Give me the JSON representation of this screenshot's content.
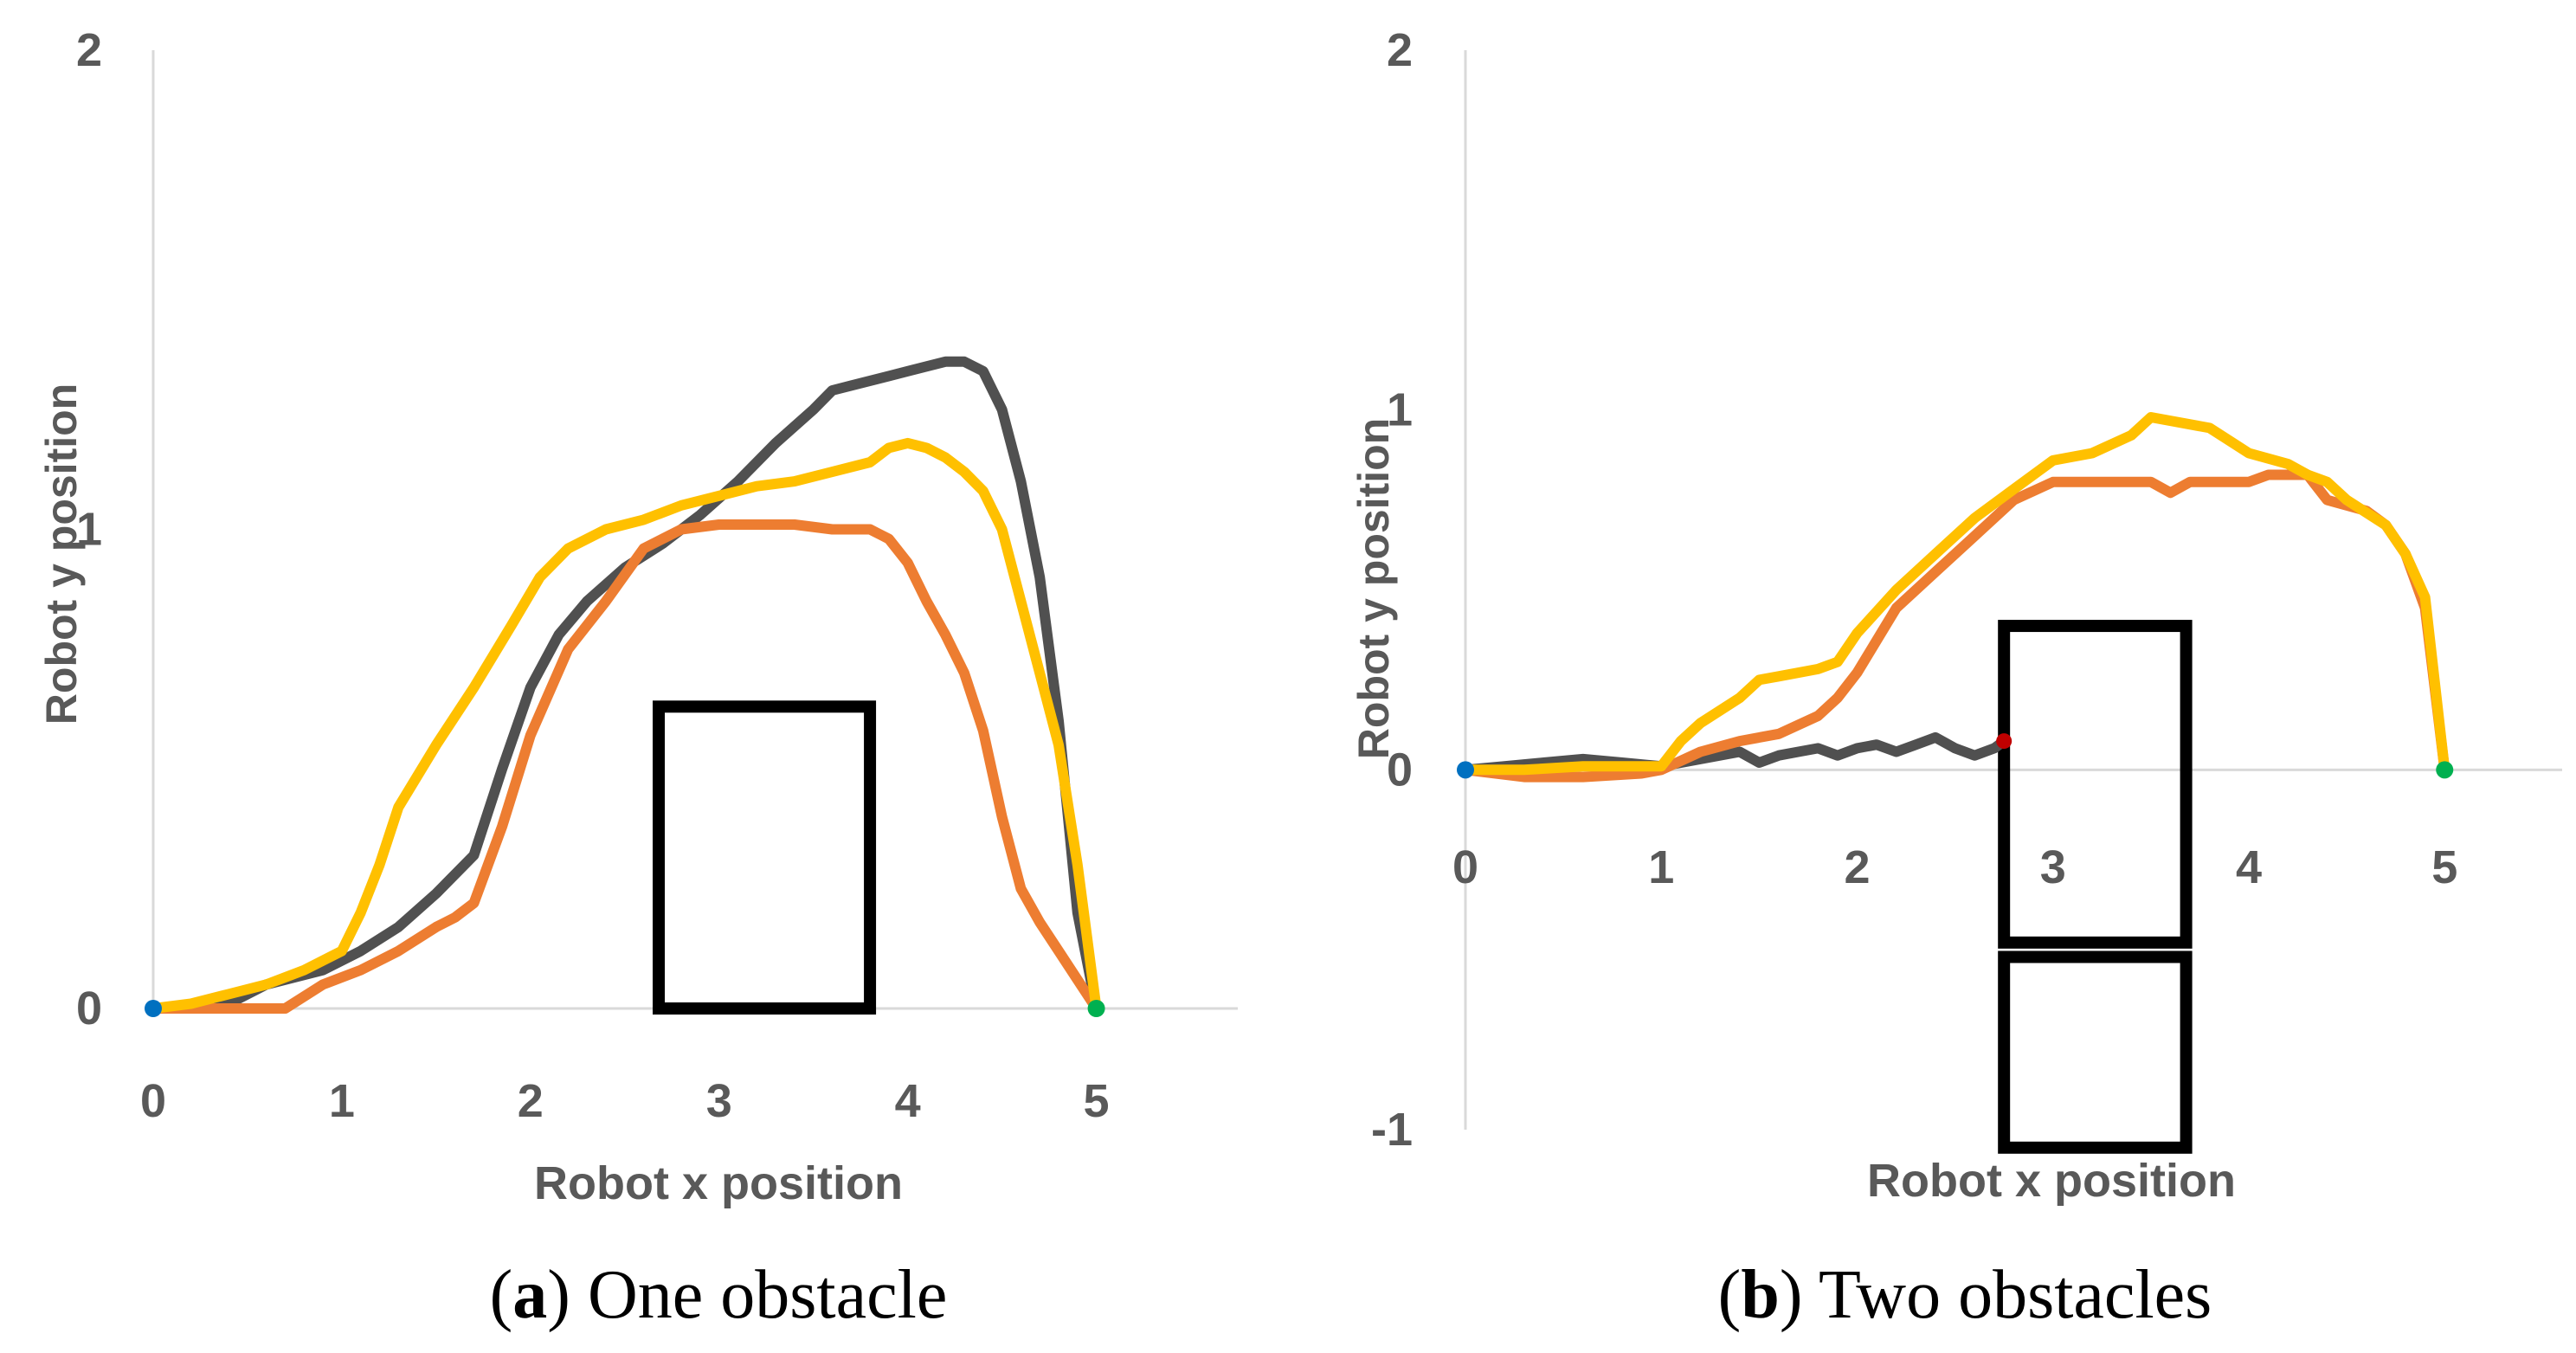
{
  "colors": {
    "gray": "#505050",
    "orange": "#ED7D31",
    "yellow": "#FFC000",
    "start": "#0070C0",
    "goal": "#00B050",
    "collision": "#C00000",
    "axis": "#D9D9D9",
    "obstacle": "#000000"
  },
  "chart_data": [
    {
      "type": "line",
      "caption_letter": "a",
      "caption_text": " One obstacle",
      "xlabel": "Robot x position",
      "ylabel": "Robot y position",
      "xlim": [
        0,
        5.75
      ],
      "ylim": [
        0,
        2
      ],
      "xticks": [
        "0",
        "1",
        "2",
        "3",
        "4",
        "5"
      ],
      "yticks": [
        "0",
        "1",
        "2"
      ],
      "start_point": [
        0,
        0
      ],
      "goal_point": [
        5,
        0
      ],
      "obstacles": [
        {
          "x0": 2.68,
          "x1": 3.8,
          "y0": 0,
          "y1": 0.63
        }
      ],
      "series": [
        {
          "name": "gray",
          "color_key": "gray",
          "x": [
            0,
            0.4,
            0.6,
            0.9,
            1.1,
            1.3,
            1.5,
            1.7,
            1.85,
            2.0,
            2.15,
            2.3,
            2.5,
            2.7,
            2.9,
            3.1,
            3.3,
            3.5,
            3.6,
            3.7,
            3.8,
            3.9,
            4.0,
            4.1,
            4.2,
            4.3,
            4.4,
            4.5,
            4.6,
            4.7,
            4.8,
            4.9,
            5.0
          ],
          "y": [
            0,
            0.01,
            0.05,
            0.08,
            0.12,
            0.17,
            0.24,
            0.32,
            0.5,
            0.67,
            0.78,
            0.85,
            0.92,
            0.97,
            1.03,
            1.1,
            1.18,
            1.25,
            1.29,
            1.3,
            1.31,
            1.32,
            1.33,
            1.34,
            1.35,
            1.35,
            1.33,
            1.25,
            1.1,
            0.9,
            0.6,
            0.2,
            0.0
          ]
        },
        {
          "name": "orange",
          "color_key": "orange",
          "x": [
            0,
            0.3,
            0.7,
            0.9,
            1.1,
            1.3,
            1.5,
            1.6,
            1.7,
            1.85,
            2.0,
            2.2,
            2.4,
            2.6,
            2.8,
            3.0,
            3.2,
            3.4,
            3.6,
            3.8,
            3.9,
            4.0,
            4.1,
            4.2,
            4.3,
            4.4,
            4.5,
            4.6,
            4.7,
            4.8,
            4.9,
            5.0
          ],
          "y": [
            0,
            0,
            0,
            0.05,
            0.08,
            0.12,
            0.17,
            0.19,
            0.22,
            0.38,
            0.57,
            0.75,
            0.85,
            0.96,
            1.0,
            1.01,
            1.01,
            1.01,
            1.0,
            1.0,
            0.98,
            0.93,
            0.85,
            0.78,
            0.7,
            0.58,
            0.4,
            0.25,
            0.18,
            0.12,
            0.06,
            0.0
          ]
        },
        {
          "name": "yellow",
          "color_key": "yellow",
          "x": [
            0,
            0.2,
            0.4,
            0.6,
            0.8,
            1.0,
            1.1,
            1.2,
            1.3,
            1.5,
            1.7,
            1.9,
            2.05,
            2.2,
            2.4,
            2.6,
            2.8,
            3.0,
            3.2,
            3.4,
            3.6,
            3.8,
            3.9,
            4.0,
            4.1,
            4.2,
            4.3,
            4.4,
            4.5,
            4.6,
            4.7,
            4.8,
            4.9,
            5.0
          ],
          "y": [
            0,
            0.01,
            0.03,
            0.05,
            0.08,
            0.12,
            0.2,
            0.3,
            0.42,
            0.55,
            0.67,
            0.8,
            0.9,
            0.96,
            1.0,
            1.02,
            1.05,
            1.07,
            1.09,
            1.1,
            1.12,
            1.14,
            1.17,
            1.18,
            1.17,
            1.15,
            1.12,
            1.08,
            1.0,
            0.85,
            0.7,
            0.55,
            0.3,
            0.0
          ]
        }
      ]
    },
    {
      "type": "line",
      "caption_letter": "b",
      "caption_text": " Two obstacles",
      "xlabel": "Robot x position",
      "ylabel": "Robot y position",
      "xlim": [
        0,
        5.6
      ],
      "ylim": [
        -1,
        2
      ],
      "xticks": [
        "0",
        "1",
        "2",
        "3",
        "4",
        "5"
      ],
      "yticks": [
        "-1",
        "0",
        "1",
        "2"
      ],
      "start_point": [
        0,
        0
      ],
      "goal_point": [
        5,
        0
      ],
      "collision_point": [
        2.75,
        0.08
      ],
      "obstacles": [
        {
          "x0": 2.75,
          "x1": 3.68,
          "y0": -0.48,
          "y1": 0.4
        },
        {
          "x0": 2.75,
          "x1": 3.68,
          "y0": -1.05,
          "y1": -0.52
        }
      ],
      "series": [
        {
          "name": "gray",
          "color_key": "gray",
          "x": [
            0,
            0.2,
            0.4,
            0.6,
            0.8,
            1.0,
            1.2,
            1.4,
            1.5,
            1.6,
            1.7,
            1.8,
            1.9,
            2.0,
            2.1,
            2.2,
            2.3,
            2.4,
            2.5,
            2.6,
            2.7,
            2.75
          ],
          "y": [
            0,
            0.01,
            0.02,
            0.03,
            0.02,
            0.01,
            0.03,
            0.05,
            0.02,
            0.04,
            0.05,
            0.06,
            0.04,
            0.06,
            0.07,
            0.05,
            0.07,
            0.09,
            0.06,
            0.04,
            0.06,
            0.08
          ]
        },
        {
          "name": "orange",
          "color_key": "orange",
          "x": [
            0,
            0.3,
            0.6,
            0.9,
            1.0,
            1.2,
            1.4,
            1.6,
            1.8,
            1.9,
            2.0,
            2.2,
            2.4,
            2.6,
            2.8,
            3.0,
            3.2,
            3.4,
            3.5,
            3.6,
            3.7,
            3.8,
            3.9,
            4.0,
            4.1,
            4.2,
            4.3,
            4.4,
            4.6,
            4.7,
            4.8,
            4.9,
            5.0
          ],
          "y": [
            0,
            -0.02,
            -0.02,
            -0.01,
            0.0,
            0.05,
            0.08,
            0.1,
            0.15,
            0.2,
            0.27,
            0.45,
            0.55,
            0.65,
            0.75,
            0.8,
            0.8,
            0.8,
            0.8,
            0.77,
            0.8,
            0.8,
            0.8,
            0.8,
            0.82,
            0.82,
            0.82,
            0.75,
            0.72,
            0.68,
            0.6,
            0.45,
            0.0
          ]
        },
        {
          "name": "yellow",
          "color_key": "yellow",
          "x": [
            0,
            0.3,
            0.6,
            0.9,
            1.0,
            1.1,
            1.2,
            1.4,
            1.5,
            1.6,
            1.8,
            1.9,
            2.0,
            2.2,
            2.4,
            2.6,
            2.8,
            3.0,
            3.2,
            3.4,
            3.5,
            3.6,
            3.8,
            4.0,
            4.2,
            4.3,
            4.4,
            4.5,
            4.7,
            4.8,
            4.9,
            5.0
          ],
          "y": [
            0,
            0.0,
            0.01,
            0.01,
            0.01,
            0.08,
            0.13,
            0.2,
            0.25,
            0.26,
            0.28,
            0.3,
            0.38,
            0.5,
            0.6,
            0.7,
            0.78,
            0.86,
            0.88,
            0.93,
            0.98,
            0.97,
            0.95,
            0.88,
            0.85,
            0.82,
            0.8,
            0.75,
            0.68,
            0.6,
            0.48,
            0.0
          ]
        }
      ]
    }
  ]
}
